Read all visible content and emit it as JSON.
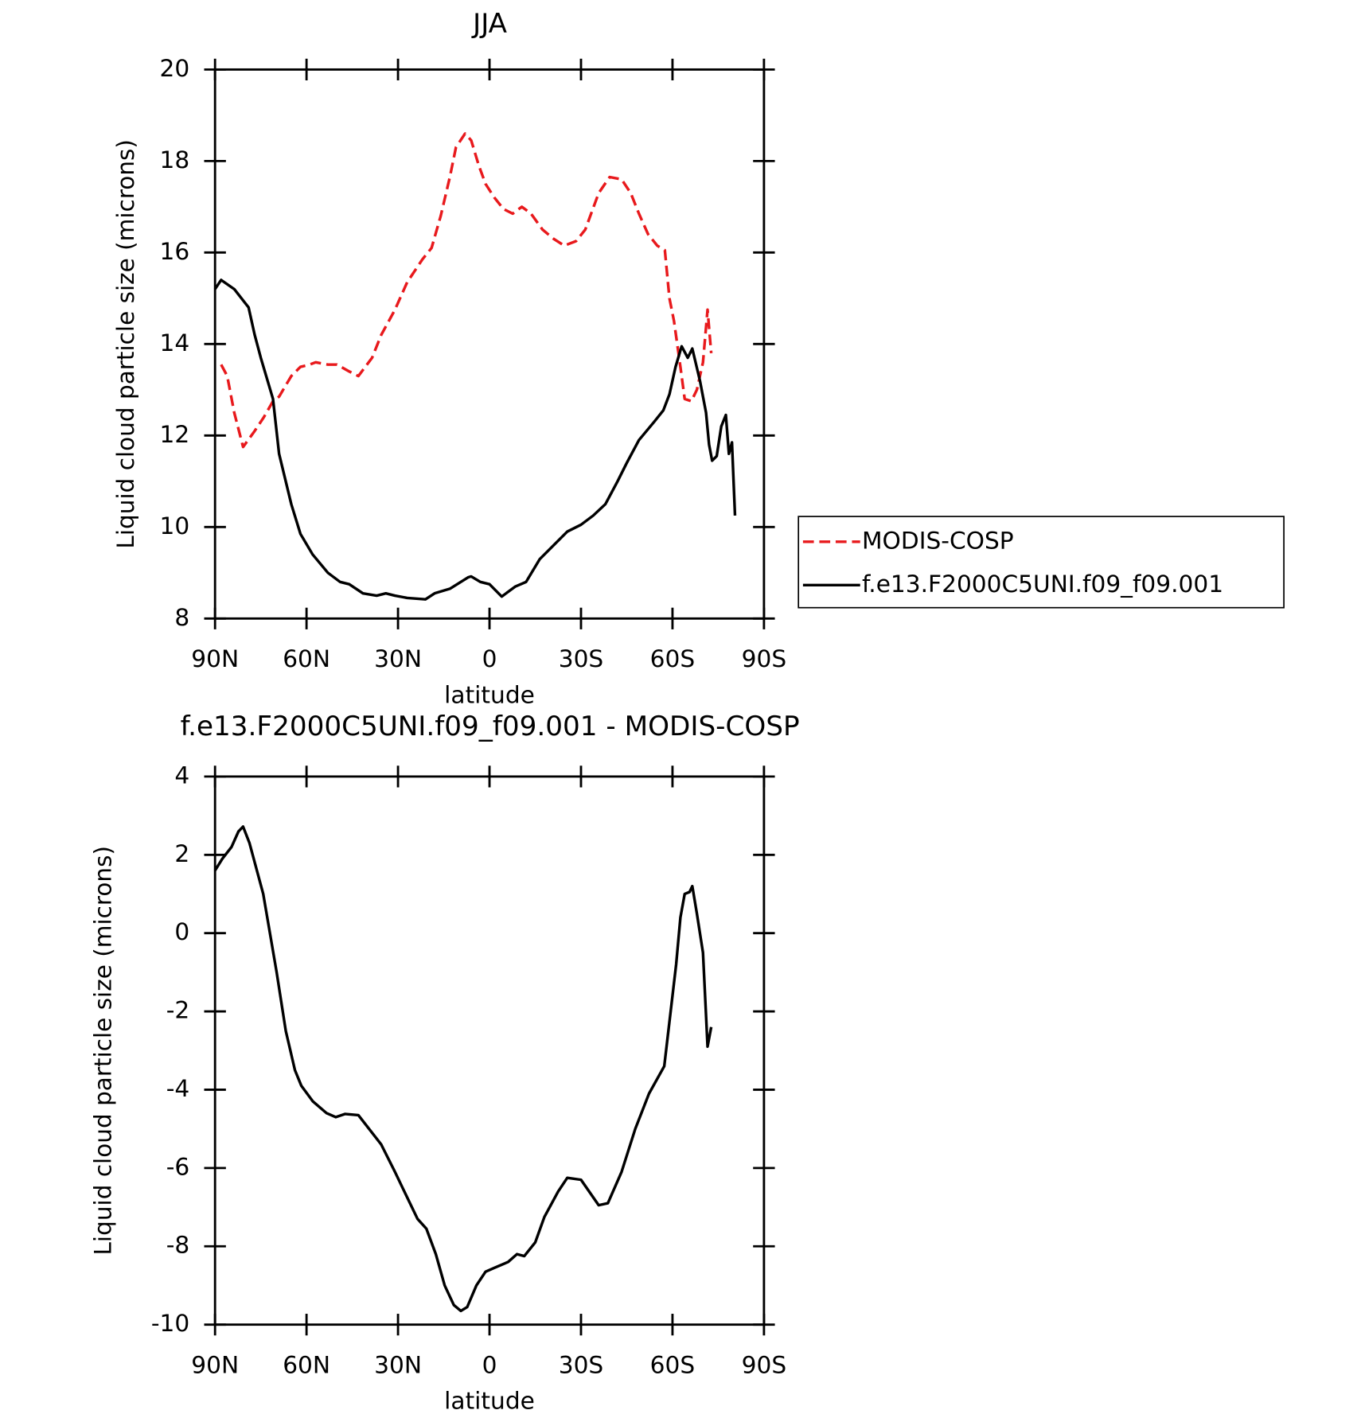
{
  "chart_data": [
    {
      "type": "line",
      "title": "JJA",
      "x_label": "latitude",
      "y_label": "Liquid cloud particle size (microns)",
      "x": [
        90,
        88,
        86,
        83.7,
        80.8,
        79,
        77,
        75,
        74,
        71,
        69,
        68,
        65,
        62,
        59,
        58,
        57,
        53,
        50,
        49,
        46,
        43,
        41.5,
        38.5,
        37,
        35.5,
        34,
        31,
        27,
        22,
        21,
        19,
        18,
        16,
        13,
        11,
        8,
        7,
        6,
        3.5,
        3,
        1.3,
        0,
        -1.6,
        -4,
        -4.6,
        -7.6,
        -8.5,
        -10.6,
        -12,
        -13.6,
        -16.5,
        -17.4,
        -21,
        -24.5,
        -25.5,
        -28.4,
        -30,
        -31.4,
        -34,
        -35.8,
        -38,
        -39.4,
        -42,
        -43.3,
        -45,
        -46.3,
        -49,
        -52,
        -54,
        -55,
        -57,
        -57.5,
        -59,
        -60.5,
        -61,
        -62.6,
        -63,
        -64,
        -65,
        -66.2,
        -66.5,
        -68,
        -69,
        -70,
        -71,
        -71.5,
        -72,
        -72.7,
        -73,
        -74.5,
        -76,
        -77.5,
        -78.5,
        -79.5,
        -80.5
      ],
      "series": [
        {
          "name": "MODIS-COSP",
          "color": "#e8191c",
          "dash": true,
          "values": [
            null,
            13.55,
            13.3,
            12.5,
            11.75,
            null,
            12.1,
            null,
            12.4,
            12.75,
            12.85,
            null,
            13.3,
            13.5,
            13.55,
            null,
            13.6,
            13.55,
            13.55,
            null,
            13.4,
            13.3,
            null,
            13.7,
            null,
            14.2,
            null,
            14.75,
            15.35,
            15.85,
            null,
            16.1,
            null,
            16.8,
            17.65,
            18.3,
            18.6,
            null,
            18.45,
            17.9,
            null,
            17.5,
            null,
            17.2,
            null,
            16.95,
            16.85,
            null,
            17.0,
            null,
            16.85,
            null,
            16.5,
            16.3,
            16.15,
            null,
            16.25,
            null,
            16.5,
            null,
            17.3,
            null,
            17.65,
            null,
            17.6,
            null,
            17.3,
            16.85,
            16.4,
            null,
            16.15,
            null,
            16.05,
            15.0,
            14.5,
            null,
            13.5,
            null,
            12.8,
            null,
            12.75,
            null,
            13.0,
            null,
            13.6,
            null,
            14.75,
            null,
            13.8,
            null,
            null,
            null,
            null,
            null,
            null,
            null
          ]
        },
        {
          "name": "f.e13.F2000C5UNI.f09_f09.001",
          "color": "#000000",
          "dash": false,
          "values": [
            15.2,
            15.4,
            null,
            15.2,
            null,
            14.8,
            14.2,
            13.7,
            null,
            12.8,
            11.6,
            null,
            10.5,
            9.85,
            null,
            9.4,
            null,
            9.0,
            null,
            8.8,
            8.75,
            null,
            8.55,
            null,
            8.5,
            null,
            8.55,
            8.5,
            8.45,
            null,
            8.42,
            null,
            8.55,
            null,
            8.65,
            null,
            null,
            8.9,
            8.92,
            null,
            8.8,
            null,
            8.75,
            null,
            8.48,
            null,
            null,
            8.7,
            null,
            8.8,
            null,
            9.3,
            null,
            9.6,
            null,
            9.9,
            null,
            10.05,
            null,
            10.25,
            null,
            10.5,
            null,
            11.0,
            null,
            11.4,
            null,
            11.9,
            null,
            12.3,
            null,
            12.55,
            null,
            12.9,
            null,
            13.5,
            null,
            13.95,
            null,
            13.7,
            null,
            13.9,
            null,
            13.2,
            null,
            12.5,
            null,
            11.8,
            null,
            11.45,
            11.55,
            12.2,
            12.45,
            11.6,
            11.85,
            10.25
          ]
        }
      ],
      "xlim": [
        90,
        -90
      ],
      "xticks": [
        {
          "value": 90,
          "label": "90N"
        },
        {
          "value": 60,
          "label": "60N"
        },
        {
          "value": 30,
          "label": "30N"
        },
        0,
        {
          "value": -30,
          "label": "30S"
        },
        {
          "value": -60,
          "label": "60S"
        },
        {
          "value": -90,
          "label": "90S"
        }
      ],
      "ylim": [
        8,
        20
      ],
      "yticks": [
        8,
        10,
        12,
        14,
        16,
        18,
        20
      ],
      "legend": "right"
    },
    {
      "type": "line",
      "title": "f.e13.F2000C5UNI.f09_f09.001 - MODIS-COSP",
      "x_label": "latitude",
      "y_label": "Liquid cloud particle size (microns)",
      "x": [
        90,
        87.6,
        84.6,
        82.3,
        80.8,
        78.7,
        74.2,
        69.8,
        66.8,
        63.8,
        61.7,
        57.9,
        53.4,
        50.4,
        47.4,
        43,
        38.5,
        35.5,
        31,
        27,
        23.6,
        20.7,
        17.6,
        14.7,
        11.7,
        9.4,
        7.3,
        4.3,
        1.3,
        -1.6,
        -6.1,
        -9,
        -11.4,
        -15,
        -18,
        -22.5,
        -25.5,
        -30,
        -35.8,
        -38.8,
        -43.3,
        -47.8,
        -52.3,
        -57.3,
        -58.8,
        -61.2,
        -62.6,
        -64,
        -65.6,
        -66.5,
        -68,
        -70,
        -71.5,
        -72.7
      ],
      "series": [
        {
          "name": "f.e13.F2000C5UNI.f09_f09.001 - MODIS-COSP",
          "color": "#000000",
          "dash": false,
          "values": [
            1.6,
            1.9,
            2.2,
            2.6,
            2.72,
            2.3,
            1.0,
            -1.0,
            -2.5,
            -3.5,
            -3.9,
            -4.3,
            -4.6,
            -4.7,
            -4.62,
            -4.65,
            -5.1,
            -5.4,
            -6.1,
            -6.75,
            -7.3,
            -7.55,
            -8.2,
            -9.0,
            -9.5,
            -9.65,
            -9.55,
            -9.0,
            -8.65,
            -8.55,
            -8.4,
            -8.2,
            -8.25,
            -7.9,
            -7.25,
            -6.6,
            -6.25,
            -6.3,
            -6.95,
            -6.9,
            -6.1,
            -5.0,
            -4.1,
            -3.4,
            -2.4,
            -0.8,
            0.4,
            1.0,
            1.05,
            1.2,
            0.5,
            -0.5,
            -2.9,
            -2.4
          ]
        }
      ],
      "xlim": [
        90,
        -90
      ],
      "xticks": [
        {
          "value": 90,
          "label": "90N"
        },
        {
          "value": 60,
          "label": "60N"
        },
        {
          "value": 30,
          "label": "30N"
        },
        0,
        {
          "value": -30,
          "label": "30S"
        },
        {
          "value": -60,
          "label": "60S"
        },
        {
          "value": -90,
          "label": "90S"
        }
      ],
      "ylim": [
        -10,
        4
      ],
      "yticks": [
        -10,
        -8,
        -6,
        -4,
        -2,
        0,
        2,
        4
      ]
    }
  ]
}
